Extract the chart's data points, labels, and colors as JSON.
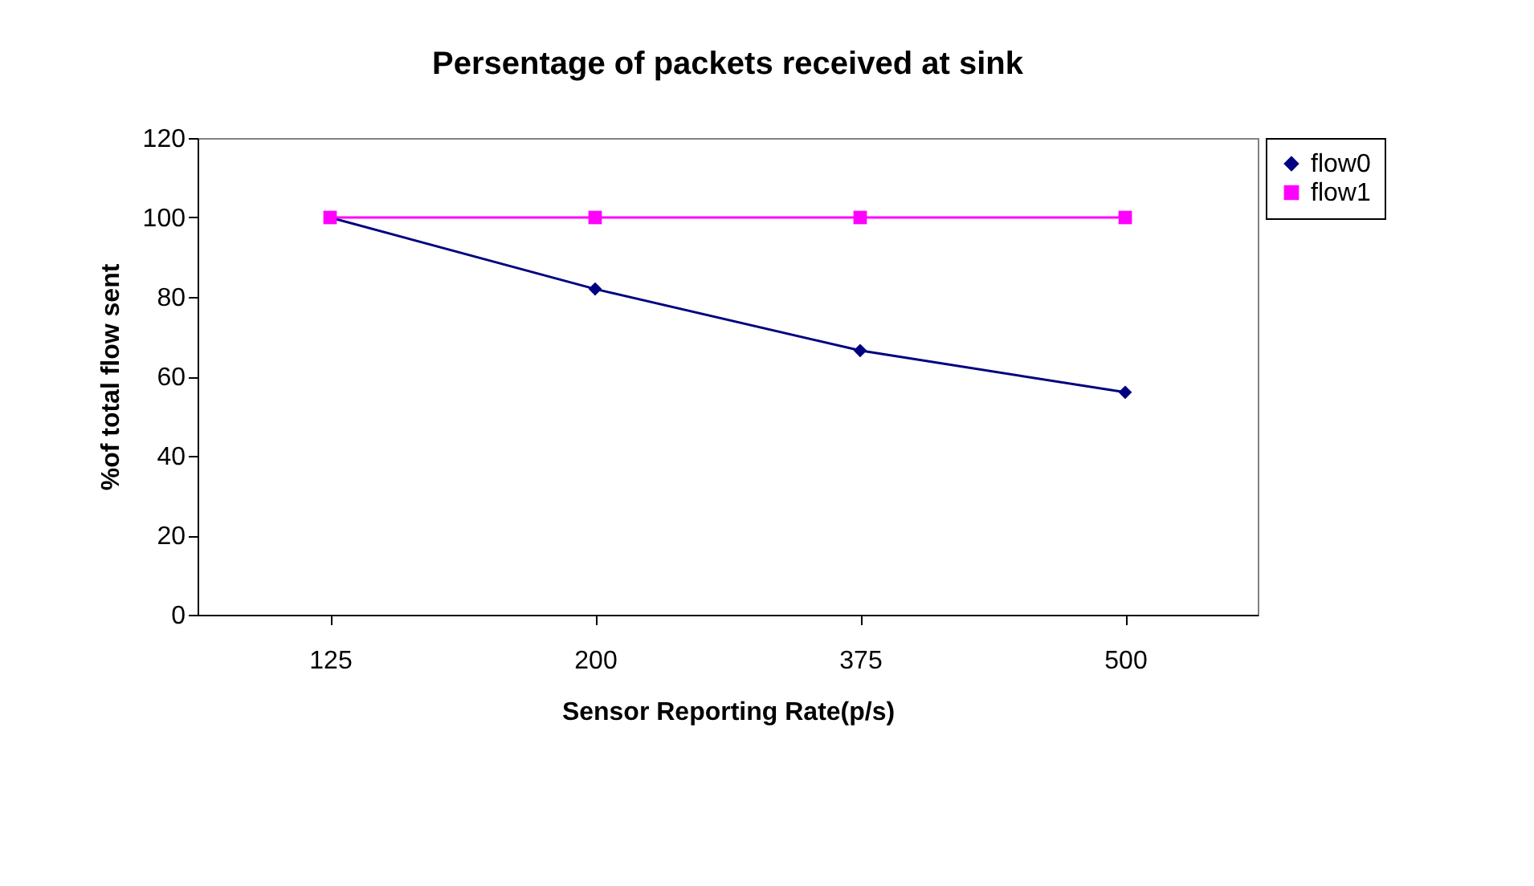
{
  "chart_data": {
    "type": "line",
    "title": "Persentage of packets received at sink",
    "xlabel": "Sensor Reporting Rate(p/s)",
    "ylabel": "%of total flow sent",
    "categories": [
      "125",
      "200",
      "375",
      "500"
    ],
    "series": [
      {
        "name": "flow0",
        "color": "#000080",
        "marker": "diamond",
        "values": [
          100,
          82,
          66.5,
          56
        ]
      },
      {
        "name": "flow1",
        "color": "#ff00ff",
        "marker": "square",
        "values": [
          100,
          100,
          100,
          100
        ]
      }
    ],
    "ylim": [
      0,
      120
    ],
    "yticks": [
      0,
      20,
      40,
      60,
      80,
      100,
      120
    ],
    "grid": false,
    "legend": "right",
    "line_style": "solid"
  }
}
